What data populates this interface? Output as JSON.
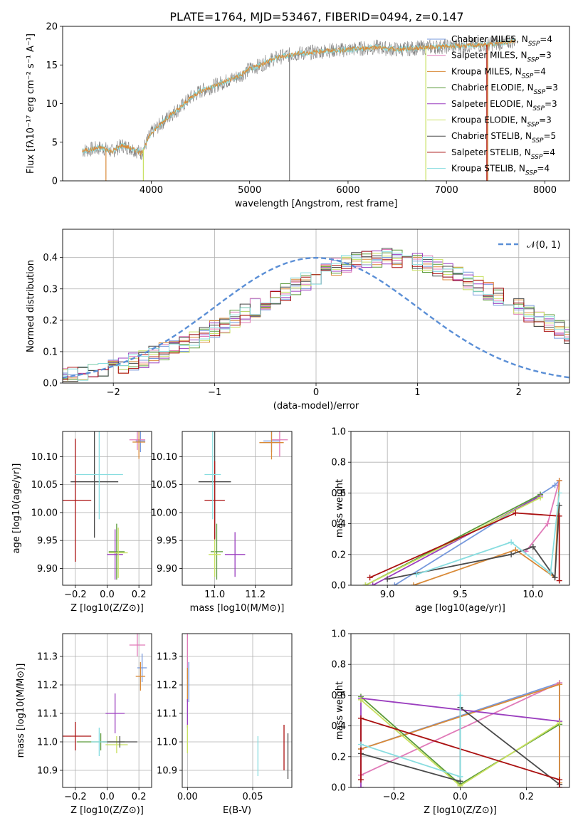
{
  "title": "PLATE=1764, MJD=53467, FIBERID=0494, z=0.147",
  "colors": {
    "chabrier_miles": "#7799dd",
    "salpeter_miles": "#e07ab8",
    "kroupa_miles": "#d98a38",
    "chabrier_elodie": "#5a9a3a",
    "salpeter_elodie": "#9b3fbf",
    "kroupa_elodie": "#c8e060",
    "chabrier_stelib": "#4a4a4a",
    "salpeter_stelib": "#aa1111",
    "kroupa_stelib": "#88dde0",
    "data": "#808080",
    "normal": "#5b8fd6"
  },
  "chart_data": [
    {
      "type": "line",
      "xlabel": "wavelength [Angstrom, rest frame]",
      "ylabel": "Flux [fλ10⁻¹⁷ erg cm⁻² s⁻¹ A⁻¹]",
      "xlim": [
        3100,
        8250
      ],
      "ylim": [
        0,
        20
      ],
      "xticks": [
        "4000",
        "5000",
        "6000",
        "7000",
        "8000"
      ],
      "yticks": [
        "0",
        "5",
        "10",
        "15",
        "20"
      ],
      "legend_position": "top-right",
      "legend": [
        "Chabrier MILES, NSSP=4",
        "Salpeter MILES, NSSP=3",
        "Kroupa MILES, NSSP=4",
        "Chabrier ELODIE, NSSP=3",
        "Salpeter ELODIE, NSSP=3",
        "Kroupa ELODIE, NSSP=3",
        "Chabrier STELIB, NSSP=5",
        "Salpeter STELIB, NSSP=4",
        "Kroupa STELIB, NSSP=4"
      ],
      "continuum": [
        [
          3300,
          3.9
        ],
        [
          3400,
          4.1
        ],
        [
          3500,
          4.3
        ],
        [
          3600,
          3.8
        ],
        [
          3700,
          4.6
        ],
        [
          3800,
          4.2
        ],
        [
          3900,
          3.6
        ],
        [
          4000,
          6.2
        ],
        [
          4100,
          7.4
        ],
        [
          4200,
          8.6
        ],
        [
          4300,
          9.5
        ],
        [
          4400,
          10.8
        ],
        [
          4500,
          11.6
        ],
        [
          4600,
          12.1
        ],
        [
          4700,
          12.6
        ],
        [
          4800,
          13.1
        ],
        [
          4900,
          13.6
        ],
        [
          5000,
          14.5
        ],
        [
          5100,
          14.9
        ],
        [
          5200,
          15.6
        ],
        [
          5300,
          16.0
        ],
        [
          5400,
          16.3
        ],
        [
          5500,
          16.5
        ],
        [
          5600,
          16.6
        ],
        [
          5700,
          16.7
        ],
        [
          5800,
          16.9
        ],
        [
          5900,
          16.9
        ],
        [
          6000,
          17.0
        ],
        [
          6100,
          17.1
        ],
        [
          6200,
          17.2
        ],
        [
          6300,
          17.3
        ],
        [
          6400,
          17.1
        ],
        [
          6500,
          17.0
        ],
        [
          6600,
          17.1
        ],
        [
          6700,
          17.2
        ],
        [
          6800,
          17.3
        ],
        [
          7000,
          17.4
        ],
        [
          7200,
          17.5
        ],
        [
          7400,
          17.6
        ],
        [
          7600,
          17.9
        ],
        [
          7700,
          18.2
        ]
      ]
    },
    {
      "type": "line",
      "xlabel": "(data-model)/error",
      "ylabel": "Normed distribution",
      "xlim": [
        -2.5,
        2.5
      ],
      "ylim": [
        0,
        0.49
      ],
      "xticks": [
        "−2",
        "−1",
        "0",
        "1",
        "2"
      ],
      "yticks": [
        "0.0",
        "0.1",
        "0.2",
        "0.3",
        "0.4"
      ],
      "legend_label": "𝒩(0, 1)",
      "legend_position": "top-right",
      "histogram_bin_width": 0.1,
      "histogram_base": [
        0.018,
        0.022,
        0.028,
        0.038,
        0.045,
        0.05,
        0.058,
        0.068,
        0.078,
        0.09,
        0.1,
        0.112,
        0.125,
        0.14,
        0.155,
        0.172,
        0.188,
        0.205,
        0.222,
        0.24,
        0.258,
        0.275,
        0.292,
        0.31,
        0.325,
        0.34,
        0.355,
        0.368,
        0.378,
        0.388,
        0.395,
        0.398,
        0.4,
        0.398,
        0.395,
        0.388,
        0.378,
        0.368,
        0.355,
        0.34,
        0.325,
        0.31,
        0.292,
        0.275,
        0.258,
        0.24,
        0.222,
        0.205,
        0.188,
        0.172,
        0.155
      ]
    },
    {
      "type": "scatter",
      "xlabel": "Z [log10(Z/Z⊙)]",
      "ylabel": "age  [log10(age/yr)]",
      "xlim": [
        -0.28,
        0.28
      ],
      "ylim": [
        9.87,
        10.145
      ],
      "xticks": [
        "−0.2",
        "0.0",
        "0.2"
      ],
      "yticks": [
        "9.90",
        "9.95",
        "10.00",
        "10.05",
        "10.10"
      ],
      "points": [
        {
          "s": "chabrier_miles",
          "x": 0.21,
          "y": 10.128,
          "ex": 0.03,
          "ey": 0.02
        },
        {
          "s": "salpeter_miles",
          "x": 0.19,
          "y": 10.13,
          "ex": 0.05,
          "ey": 0.018
        },
        {
          "s": "kroupa_miles",
          "x": 0.2,
          "y": 10.126,
          "ex": 0.04,
          "ey": 0.03
        },
        {
          "s": "chabrier_elodie",
          "x": 0.06,
          "y": 9.93,
          "ex": 0.05,
          "ey": 0.05
        },
        {
          "s": "salpeter_elodie",
          "x": 0.05,
          "y": 9.925,
          "ex": 0.05,
          "ey": 0.045
        },
        {
          "s": "kroupa_elodie",
          "x": 0.07,
          "y": 9.928,
          "ex": 0.06,
          "ey": 0.045
        },
        {
          "s": "chabrier_stelib",
          "x": -0.08,
          "y": 10.055,
          "ex": 0.15,
          "ey": 0.1
        },
        {
          "s": "salpeter_stelib",
          "x": -0.2,
          "y": 10.022,
          "ex": 0.1,
          "ey": 0.11
        },
        {
          "s": "kroupa_stelib",
          "x": -0.05,
          "y": 10.068,
          "ex": 0.15,
          "ey": 0.08
        }
      ]
    },
    {
      "type": "scatter",
      "xlabel": "mass [log10(M/M⊙)]",
      "ylabel": "",
      "xlim": [
        10.84,
        11.38
      ],
      "ylim": [
        9.87,
        10.145
      ],
      "xticks": [
        "11.0",
        "11.2"
      ],
      "yticks": [
        "9.90",
        "9.95",
        "10.00",
        "10.05",
        "10.10"
      ],
      "points": [
        {
          "s": "chabrier_miles",
          "x": 11.28,
          "y": 10.128,
          "ex": 0.04,
          "ey": 0.02
        },
        {
          "s": "salpeter_miles",
          "x": 11.32,
          "y": 10.13,
          "ex": 0.04,
          "ey": 0.03
        },
        {
          "s": "kroupa_miles",
          "x": 11.28,
          "y": 10.125,
          "ex": 0.06,
          "ey": 0.03
        },
        {
          "s": "chabrier_elodie",
          "x": 11.01,
          "y": 9.93,
          "ex": 0.03,
          "ey": 0.05
        },
        {
          "s": "salpeter_elodie",
          "x": 11.1,
          "y": 9.925,
          "ex": 0.05,
          "ey": 0.04
        },
        {
          "s": "kroupa_elodie",
          "x": 11.0,
          "y": 9.925,
          "ex": 0.03,
          "ey": 0.04
        },
        {
          "s": "chabrier_stelib",
          "x": 11.0,
          "y": 10.055,
          "ex": 0.08,
          "ey": 0.1
        },
        {
          "s": "salpeter_stelib",
          "x": 11.0,
          "y": 10.022,
          "ex": 0.05,
          "ey": 0.07
        },
        {
          "s": "kroupa_stelib",
          "x": 10.99,
          "y": 10.068,
          "ex": 0.04,
          "ey": 0.08
        }
      ]
    },
    {
      "type": "line",
      "xlabel": "age  [log10(age/yr)]",
      "ylabel": "mass weight",
      "xlim": [
        8.75,
        10.25
      ],
      "ylim": [
        0,
        1
      ],
      "xticks": [
        "9.0",
        "9.5",
        "10.0"
      ],
      "yticks": [
        "0.0",
        "0.2",
        "0.4",
        "0.6",
        "0.8",
        "1.0"
      ],
      "series": [
        {
          "s": "chabrier_miles",
          "x": [
            9.05,
            10.15,
            10.18
          ],
          "y": [
            0.0,
            0.65,
            0.68
          ]
        },
        {
          "s": "salpeter_miles",
          "x": [
            9.95,
            10.1,
            10.18
          ],
          "y": [
            0.22,
            0.4,
            0.68
          ]
        },
        {
          "s": "kroupa_miles",
          "x": [
            9.18,
            9.88,
            10.15,
            10.18
          ],
          "y": [
            0.0,
            0.23,
            0.05,
            0.68
          ]
        },
        {
          "s": "chabrier_elodie",
          "x": [
            8.85,
            10.05
          ],
          "y": [
            0.0,
            0.59
          ]
        },
        {
          "s": "salpeter_elodie",
          "x": [
            8.9,
            10.05
          ],
          "y": [
            0.0,
            0.58
          ]
        },
        {
          "s": "kroupa_elodie",
          "x": [
            8.85,
            10.05
          ],
          "y": [
            0.0,
            0.57
          ]
        },
        {
          "s": "chabrier_stelib",
          "x": [
            9.0,
            9.85,
            10.0,
            10.15,
            10.18
          ],
          "y": [
            0.04,
            0.2,
            0.25,
            0.05,
            0.52
          ]
        },
        {
          "s": "salpeter_stelib",
          "x": [
            8.88,
            9.88,
            10.18,
            10.18
          ],
          "y": [
            0.05,
            0.47,
            0.45,
            0.03
          ]
        },
        {
          "s": "kroupa_stelib",
          "x": [
            9.2,
            9.85,
            10.12,
            10.18
          ],
          "y": [
            0.07,
            0.28,
            0.08,
            0.6
          ]
        }
      ]
    },
    {
      "type": "scatter",
      "xlabel": "Z [log10(Z/Z⊙)]",
      "ylabel": "mass [log10(M/M⊙)]",
      "xlim": [
        -0.28,
        0.28
      ],
      "ylim": [
        10.84,
        11.38
      ],
      "xticks": [
        "−0.2",
        "0.0",
        "0.2"
      ],
      "yticks": [
        "10.9",
        "11.0",
        "11.1",
        "11.2",
        "11.3"
      ],
      "points": [
        {
          "s": "chabrier_miles",
          "x": 0.22,
          "y": 11.26,
          "ex": 0.03,
          "ey": 0.05
        },
        {
          "s": "salpeter_miles",
          "x": 0.19,
          "y": 11.34,
          "ex": 0.05,
          "ey": 0.04
        },
        {
          "s": "kroupa_miles",
          "x": 0.21,
          "y": 11.23,
          "ex": 0.03,
          "ey": 0.05
        },
        {
          "s": "chabrier_elodie",
          "x": -0.04,
          "y": 11.0,
          "ex": 0.15,
          "ey": 0.03
        },
        {
          "s": "salpeter_elodie",
          "x": 0.05,
          "y": 11.1,
          "ex": 0.06,
          "ey": 0.07
        },
        {
          "s": "kroupa_elodie",
          "x": 0.06,
          "y": 10.99,
          "ex": 0.07,
          "ey": 0.03
        },
        {
          "s": "chabrier_stelib",
          "x": 0.08,
          "y": 11.0,
          "ex": 0.11,
          "ey": 0.02
        },
        {
          "s": "salpeter_stelib",
          "x": -0.2,
          "y": 11.02,
          "ex": 0.1,
          "ey": 0.05
        },
        {
          "s": "kroupa_stelib",
          "x": -0.05,
          "y": 11.0,
          "ex": 0.05,
          "ey": 0.05
        }
      ]
    },
    {
      "type": "scatter",
      "xlabel": "E(B-V)",
      "ylabel": "",
      "xlim": [
        -0.004,
        0.08
      ],
      "ylim": [
        10.84,
        11.38
      ],
      "xticks": [
        "0.00",
        "0.05"
      ],
      "yticks": [
        "10.9",
        "11.0",
        "11.1",
        "11.2",
        "11.3"
      ],
      "points": [
        {
          "s": "chabrier_miles",
          "x": 0.001,
          "y": 11.21,
          "ex": 0,
          "ey": 0.07
        },
        {
          "s": "salpeter_miles",
          "x": 0.0,
          "y": 11.3,
          "ex": 0,
          "ey": 0.08
        },
        {
          "s": "kroupa_miles",
          "x": 0.0,
          "y": 11.2,
          "ex": 0,
          "ey": 0.06
        },
        {
          "s": "salpeter_elodie",
          "x": 0.0,
          "y": 11.1,
          "ex": 0,
          "ey": 0.05
        },
        {
          "s": "kroupa_elodie",
          "x": 0.0,
          "y": 11.01,
          "ex": 0,
          "ey": 0.05
        },
        {
          "s": "chabrier_stelib",
          "x": 0.077,
          "y": 10.95,
          "ex": 0,
          "ey": 0.08
        },
        {
          "s": "salpeter_stelib",
          "x": 0.074,
          "y": 10.98,
          "ex": 0,
          "ey": 0.08
        },
        {
          "s": "kroupa_stelib",
          "x": 0.054,
          "y": 10.95,
          "ex": 0,
          "ey": 0.07
        }
      ]
    },
    {
      "type": "line",
      "xlabel": "Z [log10(Z/Z⊙)]",
      "ylabel": "mass weight",
      "xlim": [
        -0.33,
        0.33
      ],
      "ylim": [
        0,
        1
      ],
      "xticks": [
        "−0.2",
        "0.0",
        "0.2"
      ],
      "yticks": [
        "0.0",
        "0.2",
        "0.4",
        "0.6",
        "0.8",
        "1.0"
      ],
      "series": [
        {
          "s": "chabrier_miles",
          "x": [
            -0.3,
            0.3,
            0.3
          ],
          "y": [
            0.25,
            0.68,
            0.02
          ]
        },
        {
          "s": "salpeter_miles",
          "x": [
            -0.3,
            0.3
          ],
          "y": [
            0.08,
            0.68
          ]
        },
        {
          "s": "kroupa_miles",
          "x": [
            -0.3,
            0.3,
            0.3
          ],
          "y": [
            0.25,
            0.67,
            0.03
          ]
        },
        {
          "s": "chabrier_elodie",
          "x": [
            -0.3,
            0.0,
            0.3
          ],
          "y": [
            0.59,
            0.02,
            0.41
          ]
        },
        {
          "s": "salpeter_elodie",
          "x": [
            -0.3,
            -0.3,
            0.3
          ],
          "y": [
            0.0,
            0.58,
            0.43
          ]
        },
        {
          "s": "kroupa_elodie",
          "x": [
            -0.3,
            0.0,
            0.3
          ],
          "y": [
            0.57,
            0.01,
            0.42
          ]
        },
        {
          "s": "chabrier_stelib",
          "x": [
            -0.3,
            0.0,
            0.0,
            0.3
          ],
          "y": [
            0.22,
            0.04,
            0.52,
            0.02
          ]
        },
        {
          "s": "salpeter_stelib",
          "x": [
            -0.3,
            -0.3,
            0.3,
            0.3
          ],
          "y": [
            0.05,
            0.45,
            0.05,
            0.0
          ]
        },
        {
          "s": "kroupa_stelib",
          "x": [
            -0.3,
            0.0,
            0.0
          ],
          "y": [
            0.28,
            0.07,
            0.6
          ]
        }
      ]
    }
  ]
}
